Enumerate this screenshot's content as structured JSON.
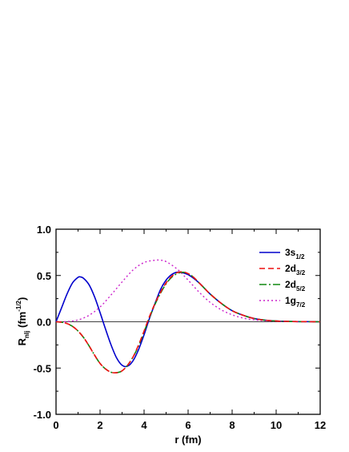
{
  "chart_data": {
    "type": "line",
    "xlabel": "r (fm)",
    "ylabel": {
      "main": "R",
      "sub": "nlj",
      "unit": " (fm",
      "sup": "-1/2",
      "close": ")"
    },
    "xlim": [
      0,
      12
    ],
    "ylim": [
      -1.0,
      1.0
    ],
    "x_ticks": [
      "0",
      "2",
      "4",
      "6",
      "8",
      "10",
      "12"
    ],
    "y_ticks": [
      "-1.0",
      "-0.5",
      "0.0",
      "0.5",
      "1.0"
    ],
    "legend_position": "top-right",
    "grid": false,
    "zero_line": true,
    "series": [
      {
        "name": "3s",
        "name_sub": "1/2",
        "color": "#0000cc",
        "dash": "solid",
        "x": [
          0,
          0.25,
          0.5,
          0.75,
          1.0,
          1.1,
          1.25,
          1.5,
          1.75,
          2.0,
          2.25,
          2.5,
          2.75,
          3.0,
          3.25,
          3.5,
          3.75,
          4.0,
          4.25,
          4.5,
          4.75,
          5.0,
          5.25,
          5.5,
          5.75,
          6.0,
          6.25,
          6.5,
          6.75,
          7.0,
          7.5,
          8.0,
          8.5,
          9.0,
          9.5,
          10.0,
          10.5,
          11.0,
          11.5,
          12.0
        ],
        "y": [
          0.0,
          0.15,
          0.3,
          0.42,
          0.48,
          0.485,
          0.47,
          0.4,
          0.27,
          0.1,
          -0.08,
          -0.25,
          -0.39,
          -0.47,
          -0.48,
          -0.42,
          -0.3,
          -0.14,
          0.04,
          0.2,
          0.35,
          0.45,
          0.51,
          0.535,
          0.53,
          0.51,
          0.47,
          0.42,
          0.36,
          0.3,
          0.2,
          0.12,
          0.07,
          0.035,
          0.017,
          0.008,
          0.004,
          0.002,
          0.001,
          0.0
        ]
      },
      {
        "name": "2d",
        "name_sub": "3/2",
        "color": "#ee1111",
        "dash": "7,4",
        "x": [
          0,
          0.25,
          0.5,
          0.75,
          1.0,
          1.25,
          1.5,
          1.75,
          2.0,
          2.25,
          2.5,
          2.75,
          3.0,
          3.25,
          3.5,
          3.75,
          4.0,
          4.25,
          4.5,
          4.75,
          5.0,
          5.25,
          5.5,
          5.75,
          6.0,
          6.25,
          6.5,
          6.75,
          7.0,
          7.5,
          8.0,
          8.5,
          9.0,
          9.5,
          10.0,
          10.5,
          11.0,
          11.5,
          12.0
        ],
        "y": [
          0.0,
          -0.005,
          -0.02,
          -0.05,
          -0.1,
          -0.17,
          -0.26,
          -0.36,
          -0.45,
          -0.51,
          -0.545,
          -0.55,
          -0.53,
          -0.47,
          -0.38,
          -0.25,
          -0.1,
          0.06,
          0.2,
          0.32,
          0.42,
          0.49,
          0.53,
          0.54,
          0.52,
          0.48,
          0.42,
          0.36,
          0.3,
          0.2,
          0.12,
          0.07,
          0.035,
          0.017,
          0.008,
          0.004,
          0.002,
          0.001,
          0.0
        ]
      },
      {
        "name": "2d",
        "name_sub": "5/2",
        "color": "#118811",
        "dash": "9,3,2,3",
        "x": [
          0,
          0.25,
          0.5,
          0.75,
          1.0,
          1.25,
          1.5,
          1.75,
          2.0,
          2.25,
          2.5,
          2.75,
          3.0,
          3.25,
          3.5,
          3.75,
          4.0,
          4.25,
          4.5,
          4.75,
          5.0,
          5.25,
          5.5,
          5.75,
          6.0,
          6.25,
          6.5,
          6.75,
          7.0,
          7.5,
          8.0,
          8.5,
          9.0,
          9.5,
          10.0,
          10.5,
          11.0,
          11.5,
          12.0
        ],
        "y": [
          0.0,
          -0.005,
          -0.02,
          -0.05,
          -0.1,
          -0.17,
          -0.26,
          -0.36,
          -0.45,
          -0.51,
          -0.545,
          -0.55,
          -0.53,
          -0.47,
          -0.38,
          -0.26,
          -0.11,
          0.05,
          0.19,
          0.31,
          0.41,
          0.48,
          0.52,
          0.535,
          0.52,
          0.48,
          0.42,
          0.36,
          0.3,
          0.2,
          0.12,
          0.07,
          0.035,
          0.017,
          0.008,
          0.004,
          0.002,
          0.001,
          0.0
        ]
      },
      {
        "name": "1g",
        "name_sub": "7/2",
        "color": "#cc22cc",
        "dash": "2,3",
        "x": [
          0,
          0.5,
          1.0,
          1.5,
          2.0,
          2.5,
          3.0,
          3.5,
          4.0,
          4.5,
          4.75,
          5.0,
          5.5,
          6.0,
          6.5,
          7.0,
          7.5,
          8.0,
          8.5,
          9.0,
          9.5,
          10.0,
          10.5,
          11.0,
          12.0
        ],
        "y": [
          0.0,
          0.002,
          0.02,
          0.07,
          0.16,
          0.29,
          0.43,
          0.56,
          0.64,
          0.665,
          0.665,
          0.65,
          0.57,
          0.45,
          0.32,
          0.21,
          0.13,
          0.075,
          0.04,
          0.02,
          0.01,
          0.005,
          0.002,
          0.001,
          0.0
        ]
      }
    ]
  }
}
